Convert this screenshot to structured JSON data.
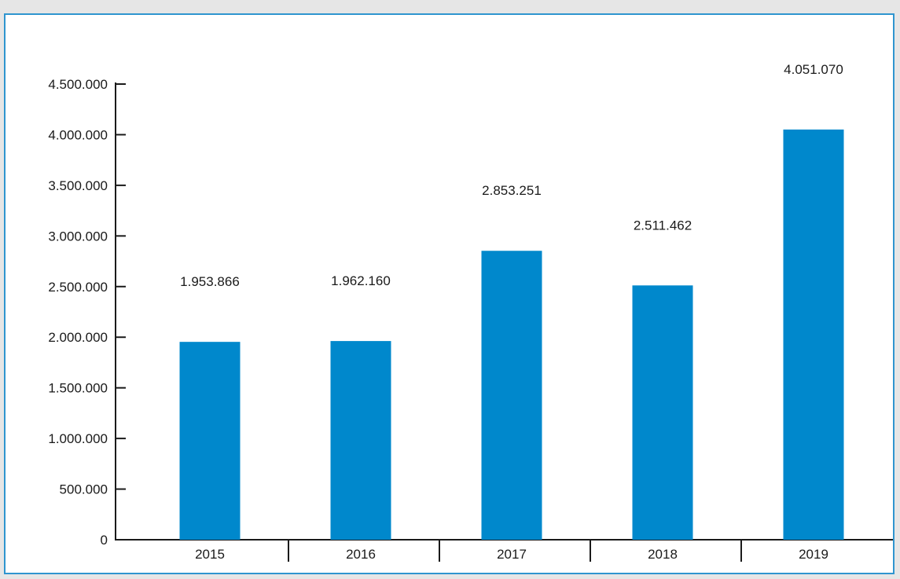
{
  "chart_data": {
    "type": "bar",
    "title": "",
    "xlabel": "",
    "ylabel": "",
    "categories": [
      "2015",
      "2016",
      "2017",
      "2018",
      "2019"
    ],
    "values": [
      1953866,
      1962160,
      2853251,
      2511462,
      4051070
    ],
    "data_labels": [
      "1.953.866",
      "1.962.160",
      "2.853.251",
      "2.511.462",
      "4.051.070"
    ],
    "ylim": [
      0,
      4500000
    ],
    "yticks": [
      0,
      500000,
      1000000,
      1500000,
      2000000,
      2500000,
      3000000,
      3500000,
      4000000,
      4500000
    ],
    "ytick_labels": [
      "0",
      "500.000",
      "1.000.000",
      "1.500.000",
      "2.000.000",
      "2.500.000",
      "3.000.000",
      "3.500.000",
      "4.000.000",
      "4.500.000"
    ],
    "grid": false,
    "legend": "none",
    "bar_color": "#0088cc",
    "frame_color": "#2f95cf",
    "background_color": "#e6e6e6"
  }
}
